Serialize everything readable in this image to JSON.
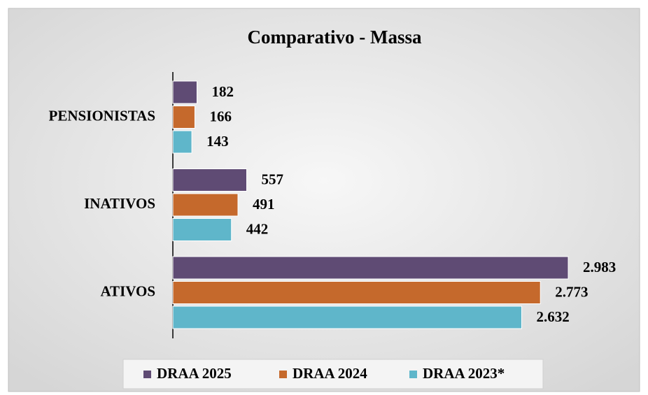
{
  "chart_data": {
    "type": "hbar",
    "title": "Comparativo - Massa",
    "categories": [
      "PENSIONISTAS",
      "INATIVOS",
      "ATIVOS"
    ],
    "series": [
      {
        "name": "DRAA 2025",
        "color": "#5f4b74",
        "values": [
          182,
          557,
          2983
        ],
        "value_labels": [
          "182",
          "557",
          "2.983"
        ]
      },
      {
        "name": "DRAA 2024",
        "color": "#c5692c",
        "values": [
          166,
          491,
          2773
        ],
        "value_labels": [
          "166",
          "491",
          "2.773"
        ]
      },
      {
        "name": "DRAA 2023*",
        "color": "#5fb6ca",
        "values": [
          143,
          442,
          2632
        ],
        "value_labels": [
          "143",
          "442",
          "2.632"
        ]
      }
    ]
  }
}
